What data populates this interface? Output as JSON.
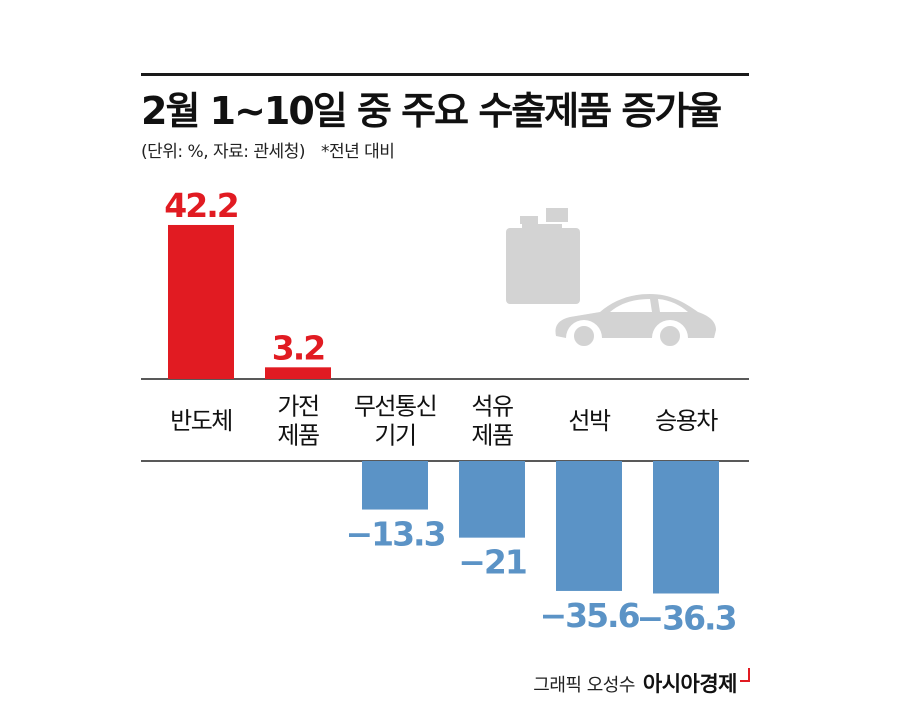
{
  "title": "2월 1~10일 중 주요 수출제품 증가율",
  "subtitle": "(단위: %, 자료: 관세청)",
  "note": "*전년 대비",
  "credit": "그래픽 오성수",
  "brand": "아시아경제",
  "colors": {
    "positive": "#e11b22",
    "negative": "#5b93c6",
    "illustration": "#d3d3d3"
  },
  "chart_data": {
    "type": "bar",
    "title": "2월 1~10일 중 주요 수출제품 증가율",
    "categories": [
      "반도체",
      "가전 제품",
      "무선통신 기기",
      "석유 제품",
      "선박",
      "승용차"
    ],
    "category_lines": [
      [
        "반도체"
      ],
      [
        "가전",
        "제품"
      ],
      [
        "무선통신",
        "기기"
      ],
      [
        "석유",
        "제품"
      ],
      [
        "선박"
      ],
      [
        "승용차"
      ]
    ],
    "values": [
      42.2,
      3.2,
      -13.3,
      -21,
      -35.6,
      -36.3
    ],
    "value_labels": [
      "42.2",
      "3.2",
      "−13.3",
      "−21",
      "−35.6",
      "−36.3"
    ],
    "ylabel": "%",
    "grid": false
  }
}
